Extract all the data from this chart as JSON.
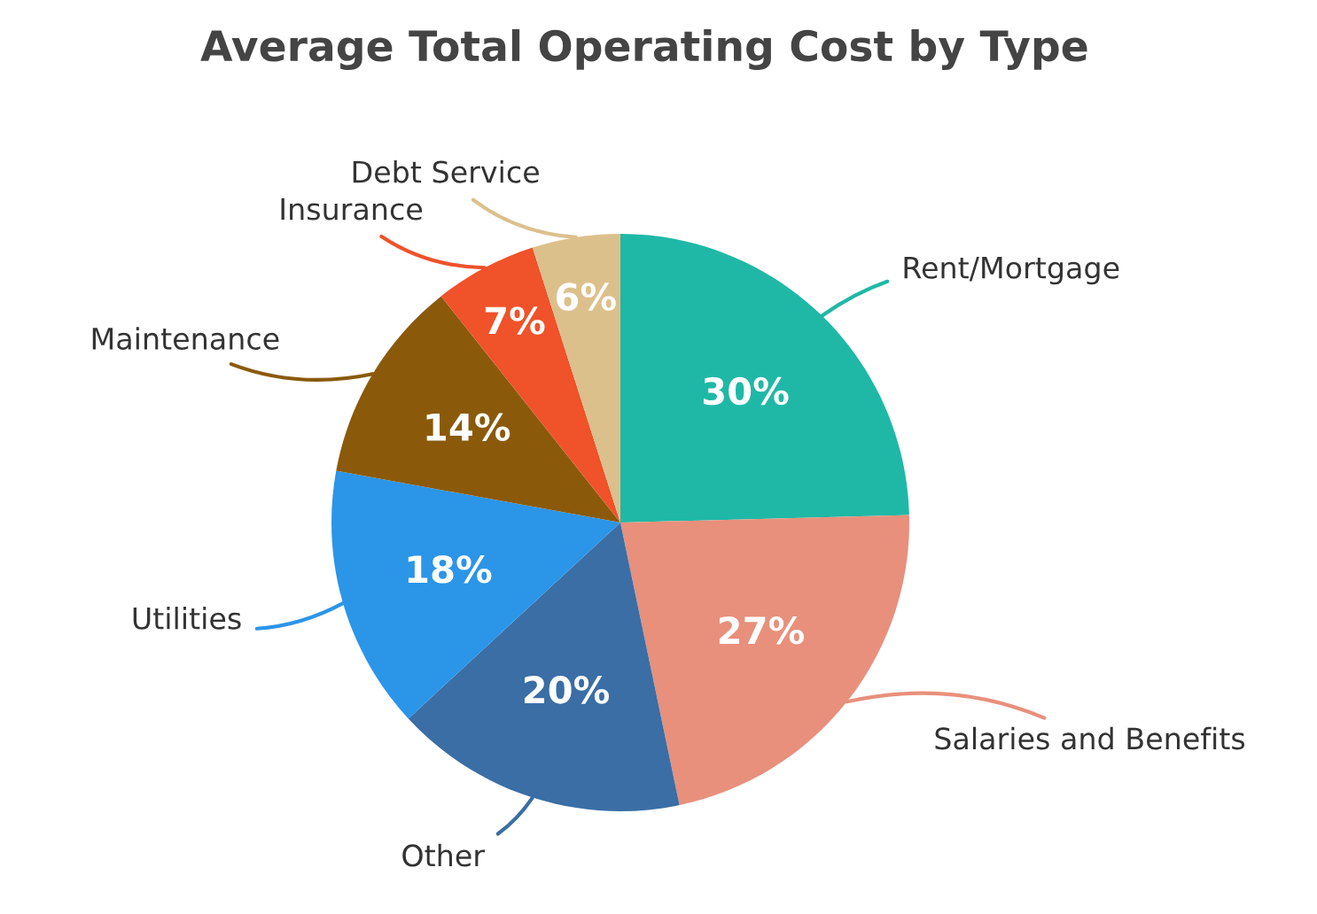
{
  "chart_data": {
    "type": "pie",
    "title": "Average Total Operating Cost by Type",
    "categories": [
      "Rent/Mortgage",
      "Salaries and Benefits",
      "Other",
      "Utilities",
      "Maintenance",
      "Insurance",
      "Debt Service"
    ],
    "values": [
      30,
      27,
      20,
      18,
      14,
      7,
      6
    ],
    "value_labels": [
      "30%",
      "27%",
      "20%",
      "18%",
      "14%",
      "7%",
      "6%"
    ],
    "colors": [
      "#1fb8a6",
      "#e8907c",
      "#3a6ea5",
      "#2b95e8",
      "#8a5a0a",
      "#f0522a",
      "#dcc08c"
    ],
    "legend": false
  }
}
